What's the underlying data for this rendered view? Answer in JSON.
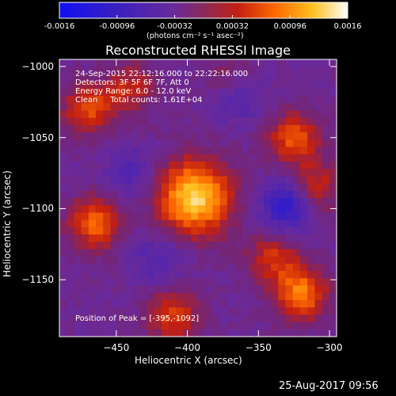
{
  "chart_data": {
    "type": "heatmap",
    "title": "Reconstructed RHESSI Image",
    "xlabel": "Heliocentric X (arcsec)",
    "ylabel": "Heliocentric Y (arcsec)",
    "xlim": [
      -490,
      -295
    ],
    "ylim": [
      -1190,
      -995
    ],
    "x_ticks": [
      -450,
      -400,
      -350,
      -300
    ],
    "y_ticks": [
      -1000,
      -1050,
      -1100,
      -1150
    ],
    "colorbar": {
      "min": -0.0016,
      "max": 0.0016,
      "ticks": [
        "-0.0016",
        "-0.00096",
        "-0.00032",
        "0.00032",
        "0.00096",
        "0.0016"
      ],
      "unit_text": "(photons cm⁻² s⁻¹ asec⁻²)"
    },
    "annotations": [
      "24-Sep-2015 22:12:16.000 to 22:22:16.000",
      "Detectors: 3F 5F 6F 7F, Att 0",
      "Energy Range: 6.0 - 12.0 keV",
      "Clean     Total counts: 1.61E+04"
    ],
    "peak_text": "Position of Peak = [-395,-1092]",
    "sources": [
      {
        "x": -395,
        "y": -1092,
        "intensity": 0.0016
      },
      {
        "x": -470,
        "y": -1030,
        "intensity": 0.00085
      },
      {
        "x": -440,
        "y": -1015,
        "intensity": 0.0006
      },
      {
        "x": -465,
        "y": -1110,
        "intensity": 0.001
      },
      {
        "x": -325,
        "y": -1050,
        "intensity": 0.0009
      },
      {
        "x": -310,
        "y": -1085,
        "intensity": 0.0007
      },
      {
        "x": -320,
        "y": -1160,
        "intensity": 0.0011
      },
      {
        "x": -340,
        "y": -1135,
        "intensity": 0.0007
      },
      {
        "x": -410,
        "y": -1175,
        "intensity": 0.0008
      },
      {
        "x": -370,
        "y": -1010,
        "intensity": 0.0005
      }
    ],
    "negative_regions": [
      {
        "x": -330,
        "y": -1098,
        "intensity": -0.0009
      },
      {
        "x": -365,
        "y": -1020,
        "intensity": -0.0006
      },
      {
        "x": -440,
        "y": -1075,
        "intensity": -0.0004
      },
      {
        "x": -420,
        "y": -1135,
        "intensity": -0.0004
      }
    ]
  },
  "footer": {
    "timestamp": "25-Aug-2017 09:56"
  },
  "colors": {
    "background": "#000000",
    "foreground": "#ffffff"
  }
}
